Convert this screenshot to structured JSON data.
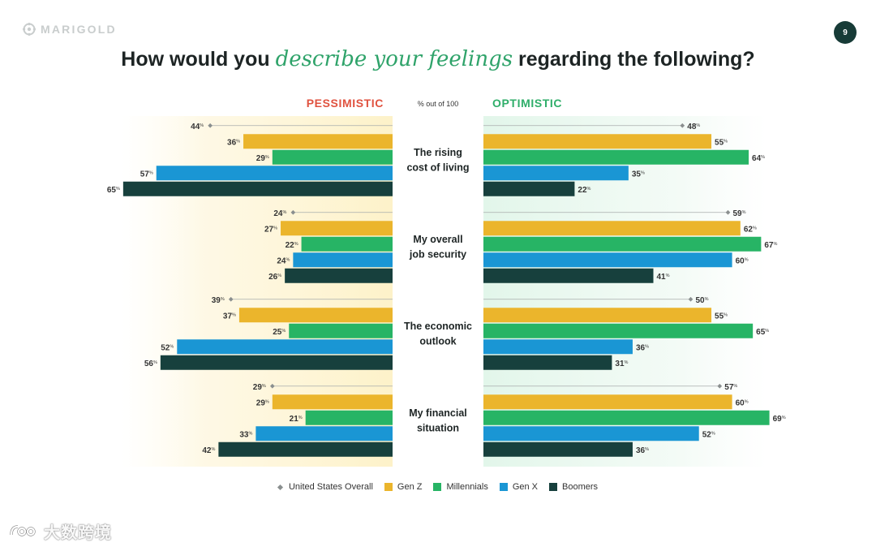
{
  "brand": {
    "name": "MARIGOLD"
  },
  "page_number": "9",
  "title": {
    "before": "How would you ",
    "accent": "describe your feelings",
    "after": " regarding the following?"
  },
  "watermark": {
    "text": "大数跨境"
  },
  "colors": {
    "pessimistic": "#e0523f",
    "optimistic": "#2fae6a",
    "us_overall": "#8a8f8f",
    "gen_z": "#ebb52c",
    "millennials": "#27b465",
    "gen_x": "#1a96d4",
    "boomers": "#17403d"
  },
  "chart_data": {
    "type": "bar",
    "orientation": "horizontal-diverging",
    "left_label": "PESSIMISTIC",
    "right_label": "OPTIMISTIC",
    "unit_label": "% out of 100",
    "value_suffix": "%",
    "xlim": [
      0,
      100
    ],
    "categories": [
      "The rising\ncost of living",
      "My overall\njob security",
      "The economic\noutlook",
      "My financial\nsituation"
    ],
    "series": [
      {
        "name": "United States Overall",
        "key": "us_overall",
        "style": "marker",
        "pessimistic": [
          44,
          24,
          39,
          29
        ],
        "optimistic": [
          48,
          59,
          50,
          57
        ]
      },
      {
        "name": "Gen Z",
        "key": "gen_z",
        "style": "bar",
        "pessimistic": [
          36,
          27,
          37,
          29
        ],
        "optimistic": [
          55,
          62,
          55,
          60
        ]
      },
      {
        "name": "Millennials",
        "key": "millennials",
        "style": "bar",
        "pessimistic": [
          29,
          22,
          25,
          21
        ],
        "optimistic": [
          64,
          67,
          65,
          69
        ]
      },
      {
        "name": "Gen X",
        "key": "gen_x",
        "style": "bar",
        "pessimistic": [
          57,
          24,
          52,
          33
        ],
        "optimistic": [
          35,
          60,
          36,
          52
        ]
      },
      {
        "name": "Boomers",
        "key": "boomers",
        "style": "bar",
        "pessimistic": [
          65,
          26,
          56,
          42
        ],
        "optimistic": [
          22,
          41,
          31,
          36
        ]
      }
    ],
    "legend": [
      "United States Overall",
      "Gen Z",
      "Millennials",
      "Gen X",
      "Boomers"
    ]
  }
}
